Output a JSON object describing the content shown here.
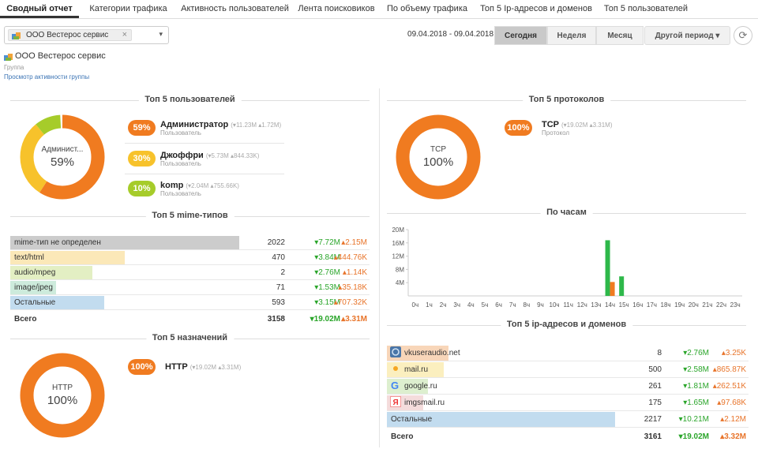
{
  "tabs": [
    {
      "label": "Сводный отчет",
      "active": true
    },
    {
      "label": "Категории трафика"
    },
    {
      "label": "Активность пользователей"
    },
    {
      "label": "Лента поисковиков"
    },
    {
      "label": "По объему трафика"
    },
    {
      "label": "Топ 5 Ip-адресов и доменов"
    },
    {
      "label": "Топ 5 пользователей"
    }
  ],
  "filter": {
    "chip": "ООО Вестерос сервис",
    "chip_close": "×",
    "caret": "▾",
    "icon": "group-icon"
  },
  "period": {
    "range": "09.04.2018 - 09.04.2018",
    "today": "Сегодня",
    "week": "Неделя",
    "month": "Месяц",
    "other": "Другой период ▾",
    "refresh": "⟳"
  },
  "group": {
    "name": "ООО Вестерос сервис",
    "kind": "Группа",
    "link": "Просмотр активности группы"
  },
  "colors": {
    "orange": "#f07b20",
    "yellow": "#f7c22b",
    "lime": "#a6cc2a",
    "green": "#2eb84a",
    "grey": "#cccccc",
    "lightyellow": "#fbe8b8",
    "lightgreen": "#e3efc3",
    "lightteal": "#cdebdc",
    "lightblue": "#c2dcef",
    "lightorange": "#f8d6b9",
    "paleyellow": "#fbefbf",
    "palegreen": "#ddefcf",
    "palepink": "#f4dcdc"
  },
  "users": {
    "title": "Топ 5 пользователей",
    "donut_label": "Админист...",
    "donut_value": "59%",
    "segments": [
      59,
      30,
      10
    ],
    "items": [
      {
        "pct": "59%",
        "name": "Администратор",
        "stats": "(▾11.23M ▴1.72M)",
        "sub": "Пользователь"
      },
      {
        "pct": "30%",
        "name": "Джоффри",
        "stats": "(▾5.73M ▴844.33K)",
        "sub": "Пользователь"
      },
      {
        "pct": "10%",
        "name": "komp",
        "stats": "(▾2.04M ▴755.66K)",
        "sub": "Пользователь"
      }
    ]
  },
  "mime": {
    "title": "Топ 5 mime-типов",
    "rows": [
      {
        "label": "mime-тип не определен",
        "count": "2022",
        "down": "▾7.72M",
        "up": "▴2.15M",
        "share": 1.0
      },
      {
        "label": "text/html",
        "count": "470",
        "down": "▾3.84M",
        "up": "▴444.76K",
        "share": 0.5
      },
      {
        "label": "audio/mpeg",
        "count": "2",
        "down": "▾2.76M",
        "up": "▴1.14K",
        "share": 0.36
      },
      {
        "label": "image/jpeg",
        "count": "71",
        "down": "▾1.53M",
        "up": "▴35.18K",
        "share": 0.2
      },
      {
        "label": "Остальные",
        "count": "593",
        "down": "▾3.15M",
        "up": "▴707.32K",
        "share": 0.41
      }
    ],
    "total": {
      "label": "Всего",
      "count": "3158",
      "down": "▾19.02M",
      "up": "▴3.31M"
    }
  },
  "dest": {
    "title": "Топ 5 назначений",
    "donut_label": "HTTP",
    "donut_value": "100%",
    "items": [
      {
        "pct": "100%",
        "name": "HTTP",
        "stats": "(▾19.02M ▴3.31M)"
      }
    ]
  },
  "proto": {
    "title": "Топ 5 протоколов",
    "donut_label": "TCP",
    "donut_value": "100%",
    "items": [
      {
        "pct": "100%",
        "name": "TCP",
        "stats": "(▾19.02M ▴3.31M)",
        "sub": "Протокол"
      }
    ]
  },
  "hourly": {
    "title": "По часам"
  },
  "chart_data": {
    "type": "bar",
    "categories": [
      "0ч",
      "1ч",
      "2ч",
      "3ч",
      "4ч",
      "5ч",
      "6ч",
      "7ч",
      "8ч",
      "9ч",
      "10ч",
      "11ч",
      "12ч",
      "13ч",
      "14ч",
      "15ч",
      "16ч",
      "17ч",
      "18ч",
      "19ч",
      "20ч",
      "21ч",
      "22ч",
      "23ч"
    ],
    "series": [
      {
        "color": "#2eb84a",
        "values": [
          0,
          0,
          0,
          0,
          0,
          0,
          0,
          0,
          0,
          0,
          0,
          0,
          0,
          0,
          16.8,
          5.9,
          0,
          0,
          0,
          0,
          0,
          0,
          0,
          0
        ]
      },
      {
        "color": "#f07b20",
        "values": [
          0,
          0,
          0,
          0,
          0,
          0,
          0,
          0,
          0,
          0,
          0,
          0,
          0,
          0,
          4.2,
          0,
          0,
          0,
          0,
          0,
          0,
          0,
          0,
          0
        ]
      }
    ],
    "yticks": [
      "4M",
      "8M",
      "12M",
      "16M",
      "20M"
    ],
    "ylim": [
      0,
      20
    ],
    "grid": false
  },
  "ipdom": {
    "title": "Топ 5 ip-адресов и доменов",
    "rows": [
      {
        "label": "vkuseraudio.net",
        "icon": "vk-icon",
        "count": "8",
        "down": "▾2.76M",
        "up": "▴3.25K",
        "share": 0.27
      },
      {
        "label": "mail.ru",
        "icon": "mailru-icon",
        "count": "500",
        "down": "▾2.58M",
        "up": "▴865.87K",
        "share": 0.25
      },
      {
        "label": "google.ru",
        "icon": "google-icon",
        "count": "261",
        "down": "▾1.81M",
        "up": "▴262.51K",
        "share": 0.18
      },
      {
        "label": "imgsmail.ru",
        "icon": "yandex-icon",
        "count": "175",
        "down": "▾1.65M",
        "up": "▴97.68K",
        "share": 0.16
      },
      {
        "label": "Остальные",
        "count": "2217",
        "down": "▾10.21M",
        "up": "▴2.12M",
        "share": 1.0
      }
    ],
    "total": {
      "label": "Всего",
      "count": "3161",
      "down": "▾19.02M",
      "up": "▴3.32M"
    }
  }
}
